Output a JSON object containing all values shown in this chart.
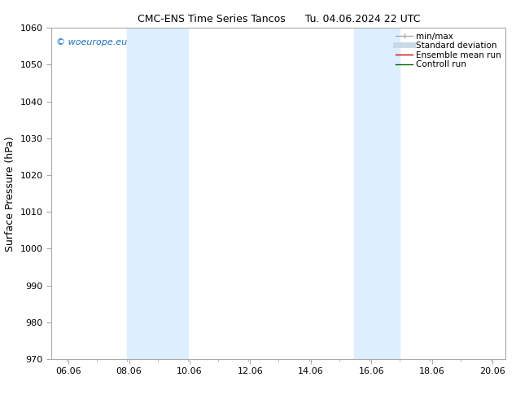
{
  "title_left": "CMC-ENS Time Series Tancos",
  "title_right": "Tu. 04.06.2024 22 UTC",
  "ylabel": "Surface Pressure (hPa)",
  "ylim": [
    970,
    1060
  ],
  "yticks": [
    970,
    980,
    990,
    1000,
    1010,
    1020,
    1030,
    1040,
    1050,
    1060
  ],
  "xlim_start": 5.5,
  "xlim_end": 20.5,
  "xticks": [
    6.06,
    8.06,
    10.06,
    12.06,
    14.06,
    16.06,
    18.06,
    20.06
  ],
  "xtick_labels": [
    "06.06",
    "08.06",
    "10.06",
    "12.06",
    "14.06",
    "16.06",
    "18.06",
    "20.06"
  ],
  "shaded_bands": [
    {
      "x_start": 8.0,
      "x_end": 10.0,
      "color": "#ddeeff"
    },
    {
      "x_start": 15.5,
      "x_end": 17.0,
      "color": "#ddeeff"
    }
  ],
  "watermark_text": "© woeurope.eu",
  "watermark_color": "#1a6fc4",
  "watermark_fontsize": 8,
  "legend_entries": [
    {
      "label": "min/max",
      "color": "#aaaaaa",
      "lw": 1.0
    },
    {
      "label": "Standard deviation",
      "color": "#c8daea",
      "lw": 5
    },
    {
      "label": "Ensemble mean run",
      "color": "#cc0000",
      "lw": 1.0
    },
    {
      "label": "Controll run",
      "color": "#006600",
      "lw": 1.0
    }
  ],
  "bg_color": "#ffffff",
  "spine_color": "#aaaaaa",
  "title_fontsize": 9,
  "tick_fontsize": 8,
  "ylabel_fontsize": 9,
  "legend_fontsize": 7.5
}
